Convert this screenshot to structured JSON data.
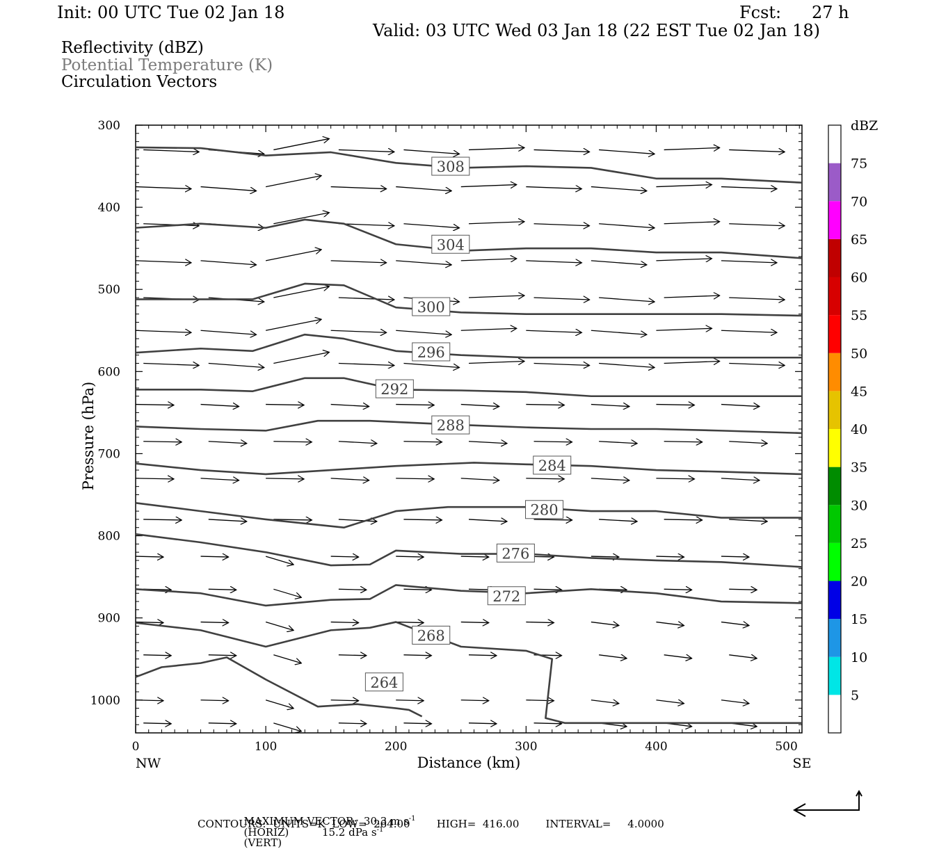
{
  "header": {
    "init": "Init: 00 UTC Tue 02 Jan 18",
    "fcst_label": "Fcst:",
    "fcst_value": "27 h",
    "valid": "Valid: 03 UTC Wed 03 Jan 18 (22 EST Tue 02 Jan 18)"
  },
  "legend": {
    "line1": "Reflectivity (dBZ)",
    "line2": "Potential Temperature (K)",
    "line3": "Circulation Vectors"
  },
  "footer": {
    "vector_prefix": "MAXIMUM VECTOR:  30.3 m s",
    "vector_mid": "(HORIZ)          15.2 dPa s",
    "vector_suffix": "(VERT)",
    "exp": "-1",
    "contours": "CONTOURS:  UNITS=K  LOW=  264.00        HIGH=  416.00        INTERVAL=     4.0000"
  },
  "colorbar": {
    "title": "dBZ",
    "labels": [
      "5",
      "10",
      "15",
      "20",
      "25",
      "30",
      "35",
      "40",
      "45",
      "50",
      "55",
      "60",
      "65",
      "70",
      "75"
    ],
    "colors": [
      "#ffffff",
      "#00e6e6",
      "#1e96e6",
      "#0000e6",
      "#00ff00",
      "#00c800",
      "#008c00",
      "#ffff00",
      "#e6c300",
      "#ff8c00",
      "#ff0000",
      "#d70000",
      "#c00000",
      "#ff00ff",
      "#9b5bc8",
      "#ffffff"
    ]
  },
  "chart_data": {
    "type": "cross-section",
    "xlabel": "Distance (km)",
    "ylabel": "Pressure (hPa)",
    "xlim": [
      0,
      512
    ],
    "ylim": [
      300,
      1040
    ],
    "y_inverted": true,
    "x_ticks": [
      "0",
      "100",
      "200",
      "300",
      "400",
      "500"
    ],
    "y_ticks": [
      "300",
      "400",
      "500",
      "600",
      "700",
      "800",
      "900",
      "1000"
    ],
    "x_end_labels": {
      "left": "NW",
      "right": "SE"
    },
    "contour_color": "#404040",
    "contours": [
      {
        "label": "308",
        "label_at": [
          242,
          350
        ],
        "points": [
          [
            0,
            327
          ],
          [
            50,
            328
          ],
          [
            100,
            337
          ],
          [
            150,
            333
          ],
          [
            200,
            346
          ],
          [
            250,
            352
          ],
          [
            300,
            350
          ],
          [
            350,
            352
          ],
          [
            400,
            365
          ],
          [
            450,
            365
          ],
          [
            512,
            370
          ]
        ]
      },
      {
        "label": "304",
        "label_at": [
          242,
          445
        ],
        "points": [
          [
            0,
            425
          ],
          [
            50,
            420
          ],
          [
            100,
            425
          ],
          [
            130,
            415
          ],
          [
            160,
            420
          ],
          [
            200,
            445
          ],
          [
            250,
            453
          ],
          [
            300,
            450
          ],
          [
            350,
            450
          ],
          [
            400,
            455
          ],
          [
            450,
            455
          ],
          [
            512,
            462
          ]
        ]
      },
      {
        "label": "300",
        "label_at": [
          227,
          521
        ],
        "points": [
          [
            0,
            512
          ],
          [
            50,
            512
          ],
          [
            90,
            512
          ],
          [
            130,
            493
          ],
          [
            160,
            495
          ],
          [
            200,
            522
          ],
          [
            250,
            528
          ],
          [
            300,
            530
          ],
          [
            350,
            530
          ],
          [
            400,
            530
          ],
          [
            450,
            530
          ],
          [
            512,
            532
          ]
        ]
      },
      {
        "label": "296",
        "label_at": [
          227,
          576
        ],
        "points": [
          [
            0,
            577
          ],
          [
            50,
            572
          ],
          [
            90,
            575
          ],
          [
            130,
            555
          ],
          [
            160,
            560
          ],
          [
            200,
            575
          ],
          [
            250,
            580
          ],
          [
            300,
            583
          ],
          [
            350,
            583
          ],
          [
            400,
            583
          ],
          [
            450,
            583
          ],
          [
            512,
            583
          ]
        ]
      },
      {
        "label": "292",
        "label_at": [
          199,
          621
        ],
        "points": [
          [
            0,
            622
          ],
          [
            50,
            622
          ],
          [
            90,
            624
          ],
          [
            130,
            608
          ],
          [
            160,
            608
          ],
          [
            200,
            622
          ],
          [
            250,
            623
          ],
          [
            300,
            625
          ],
          [
            350,
            630
          ],
          [
            400,
            630
          ],
          [
            450,
            630
          ],
          [
            512,
            630
          ]
        ]
      },
      {
        "label": "288",
        "label_at": [
          242,
          665
        ],
        "points": [
          [
            0,
            667
          ],
          [
            50,
            670
          ],
          [
            100,
            672
          ],
          [
            140,
            660
          ],
          [
            180,
            660
          ],
          [
            250,
            665
          ],
          [
            300,
            668
          ],
          [
            350,
            670
          ],
          [
            400,
            670
          ],
          [
            450,
            672
          ],
          [
            512,
            675
          ]
        ]
      },
      {
        "label": "284",
        "label_at": [
          320,
          714
        ],
        "points": [
          [
            0,
            712
          ],
          [
            50,
            720
          ],
          [
            100,
            725
          ],
          [
            150,
            720
          ],
          [
            200,
            715
          ],
          [
            260,
            711
          ],
          [
            300,
            713
          ],
          [
            350,
            715
          ],
          [
            400,
            720
          ],
          [
            450,
            722
          ],
          [
            512,
            725
          ]
        ]
      },
      {
        "label": "280",
        "label_at": [
          314,
          768
        ],
        "points": [
          [
            0,
            760
          ],
          [
            50,
            770
          ],
          [
            100,
            780
          ],
          [
            160,
            790
          ],
          [
            200,
            770
          ],
          [
            240,
            765
          ],
          [
            300,
            765
          ],
          [
            350,
            770
          ],
          [
            400,
            770
          ],
          [
            450,
            778
          ],
          [
            512,
            778
          ]
        ]
      },
      {
        "label": "276",
        "label_at": [
          292,
          821
        ],
        "points": [
          [
            0,
            798
          ],
          [
            50,
            808
          ],
          [
            100,
            820
          ],
          [
            150,
            836
          ],
          [
            180,
            835
          ],
          [
            200,
            818
          ],
          [
            250,
            822
          ],
          [
            300,
            822
          ],
          [
            350,
            827
          ],
          [
            400,
            830
          ],
          [
            450,
            832
          ],
          [
            512,
            838
          ]
        ]
      },
      {
        "label": "272",
        "label_at": [
          285,
          873
        ],
        "points": [
          [
            0,
            865
          ],
          [
            50,
            870
          ],
          [
            100,
            885
          ],
          [
            150,
            878
          ],
          [
            180,
            877
          ],
          [
            200,
            860
          ],
          [
            250,
            867
          ],
          [
            300,
            870
          ],
          [
            350,
            865
          ],
          [
            400,
            870
          ],
          [
            450,
            880
          ],
          [
            512,
            882
          ]
        ]
      },
      {
        "label": "268",
        "label_at": [
          227,
          921
        ],
        "points": [
          [
            0,
            906
          ],
          [
            50,
            915
          ],
          [
            100,
            935
          ],
          [
            150,
            915
          ],
          [
            180,
            912
          ],
          [
            200,
            905
          ],
          [
            250,
            935
          ],
          [
            300,
            940
          ],
          [
            320,
            950
          ],
          [
            315,
            1022
          ],
          [
            330,
            1028
          ],
          [
            400,
            1028
          ],
          [
            450,
            1028
          ],
          [
            512,
            1028
          ]
        ]
      },
      {
        "label": "264",
        "label_at": [
          191,
          978
        ],
        "points": [
          [
            0,
            972
          ],
          [
            20,
            960
          ],
          [
            50,
            955
          ],
          [
            70,
            948
          ],
          [
            100,
            975
          ],
          [
            140,
            1008
          ],
          [
            170,
            1005
          ],
          [
            200,
            1010
          ],
          [
            210,
            1012
          ],
          [
            220,
            1020
          ]
        ]
      }
    ],
    "vectors": {
      "x_columns_km": [
        0,
        50,
        100,
        150,
        200,
        250,
        300,
        350,
        400,
        450,
        500
      ],
      "p_levels_hpa": [
        330,
        375,
        420,
        465,
        510,
        550,
        590,
        640,
        685,
        730,
        780,
        825,
        865,
        905,
        945,
        1000,
        1028
      ]
    }
  }
}
